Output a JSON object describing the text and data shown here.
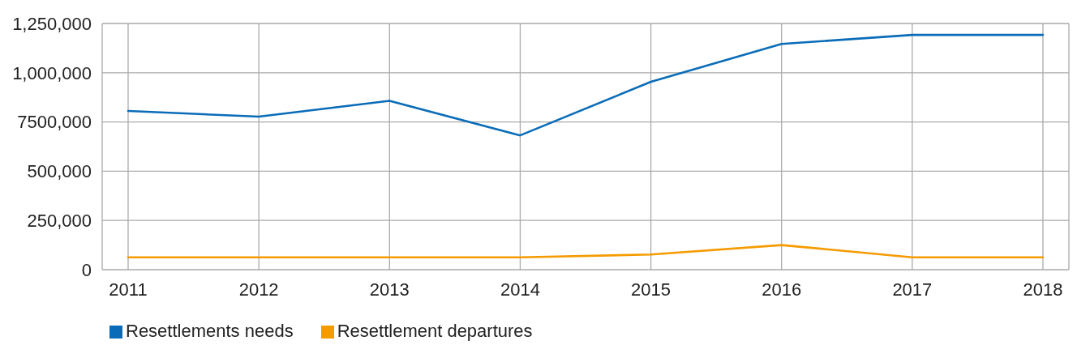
{
  "chart_data": {
    "type": "line",
    "categories": [
      "2011",
      "2012",
      "2013",
      "2014",
      "2015",
      "2016",
      "2017",
      "2018"
    ],
    "series": [
      {
        "name": "Resettlements needs",
        "color": "#0a6cb8",
        "values": [
          806000,
          777000,
          857000,
          682000,
          954000,
          1146000,
          1192000,
          1192000
        ]
      },
      {
        "name": "Resettlement departures",
        "color": "#f59b00",
        "values": [
          63000,
          63000,
          63000,
          63000,
          77000,
          125000,
          63000,
          63000
        ]
      }
    ],
    "ylim": [
      0,
      1250000
    ],
    "yticks": [
      0,
      {
        "value": 250000,
        "label": "250,000"
      },
      {
        "value": 500000,
        "label": "500,000"
      },
      {
        "value": 750000,
        "label": "7500,000"
      },
      {
        "value": 1000000,
        "label": "1,000,000"
      },
      {
        "value": 1250000,
        "label": "1,250,000"
      }
    ],
    "grid": true,
    "legend": "bottom left",
    "marker": "none",
    "line_style": "solid"
  }
}
